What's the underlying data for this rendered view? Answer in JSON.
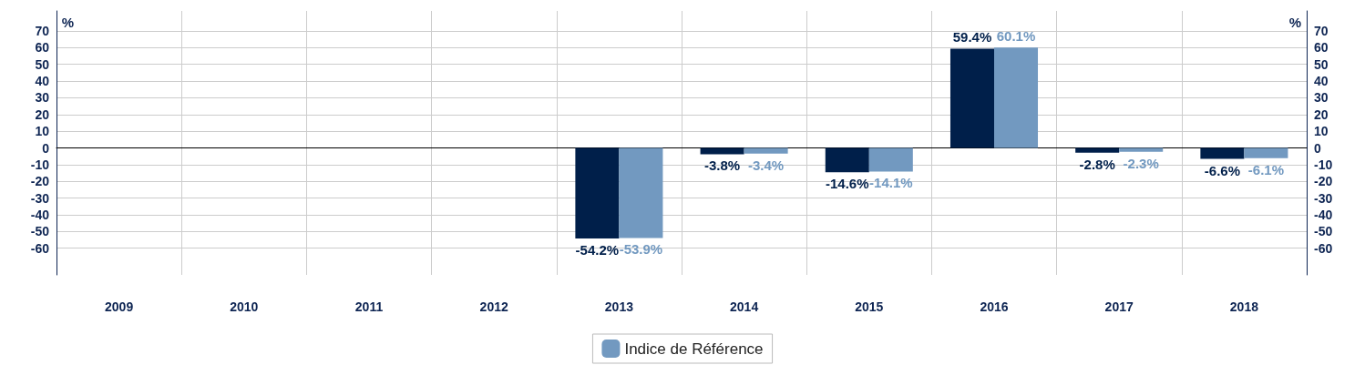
{
  "chart_data": {
    "type": "bar",
    "categories": [
      "2009",
      "2010",
      "2011",
      "2012",
      "2013",
      "2014",
      "2015",
      "2016",
      "2017",
      "2018"
    ],
    "series": [
      {
        "color": "#001f4a",
        "values": [
          null,
          null,
          null,
          null,
          -54.2,
          -3.8,
          -14.6,
          59.4,
          -2.8,
          -6.6
        ],
        "value_labels": [
          null,
          null,
          null,
          null,
          "-54.2%",
          "-3.8%",
          "-14.6%",
          "59.4%",
          "-2.8%",
          "-6.6%"
        ]
      },
      {
        "name": "Indice de Référence",
        "color": "#7299c0",
        "values": [
          null,
          null,
          null,
          null,
          -53.9,
          -3.4,
          -14.1,
          60.1,
          -2.3,
          -6.1
        ],
        "value_labels": [
          null,
          null,
          null,
          null,
          "-53.9%",
          "-3.4%",
          "-14.1%",
          "60.1%",
          "-2.3%",
          "-6.1%"
        ]
      }
    ],
    "ylabel": "%",
    "y2label": "%",
    "ylim": [
      -76,
      82
    ],
    "yticks": [
      -60,
      -50,
      -40,
      -30,
      -20,
      -10,
      0,
      10,
      20,
      30,
      40,
      50,
      60,
      70
    ],
    "y2lim": [
      -76,
      82
    ],
    "y2ticks": [
      -60,
      -50,
      -40,
      -30,
      -20,
      -10,
      0,
      10,
      20,
      30,
      40,
      50,
      60,
      70
    ],
    "grid": true,
    "legend": "bottom"
  }
}
